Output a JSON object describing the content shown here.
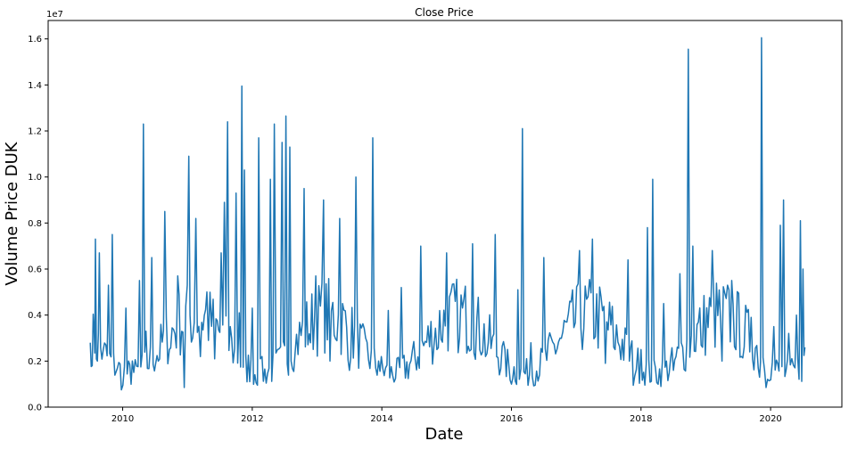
{
  "chart_data": {
    "type": "line",
    "title": "Close Price",
    "xlabel": "Date",
    "ylabel": "Volume Price DUK",
    "y_offset_label": "1e7",
    "xlim": [
      2008.85,
      2021.1
    ],
    "ylim": [
      0,
      16800000
    ],
    "x_ticks": [
      2010,
      2012,
      2014,
      2016,
      2018,
      2020
    ],
    "x_tick_labels": [
      "2010",
      "2012",
      "2014",
      "2016",
      "2018",
      "2020"
    ],
    "y_ticks": [
      0,
      2000000,
      4000000,
      6000000,
      8000000,
      10000000,
      12000000,
      14000000,
      16000000
    ],
    "y_tick_labels": [
      "0.0",
      "0.2",
      "0.4",
      "0.6",
      "0.8",
      "1.0",
      "1.2",
      "1.4",
      "1.6"
    ],
    "grid": false,
    "line_color": "#1f77b4",
    "series": [
      {
        "values": [
          {
            "x": 2009.5,
            "y": 2800000
          },
          {
            "x": 2009.53,
            "y": 1800000
          },
          {
            "x": 2009.56,
            "y": 3300000
          },
          {
            "x": 2009.58,
            "y": 7300000
          },
          {
            "x": 2009.61,
            "y": 2000000
          },
          {
            "x": 2009.64,
            "y": 6700000
          },
          {
            "x": 2009.7,
            "y": 2500000
          },
          {
            "x": 2009.78,
            "y": 5300000
          },
          {
            "x": 2009.84,
            "y": 7500000
          },
          {
            "x": 2009.92,
            "y": 1700000
          },
          {
            "x": 2009.98,
            "y": 750000
          },
          {
            "x": 2010.05,
            "y": 4300000
          },
          {
            "x": 2010.15,
            "y": 2000000
          },
          {
            "x": 2010.26,
            "y": 5500000
          },
          {
            "x": 2010.32,
            "y": 12300000
          },
          {
            "x": 2010.36,
            "y": 3300000
          },
          {
            "x": 2010.45,
            "y": 6500000
          },
          {
            "x": 2010.55,
            "y": 2000000
          },
          {
            "x": 2010.65,
            "y": 8500000
          },
          {
            "x": 2010.72,
            "y": 2500000
          },
          {
            "x": 2010.85,
            "y": 5700000
          },
          {
            "x": 2010.95,
            "y": 850000
          },
          {
            "x": 2011.02,
            "y": 10900000
          },
          {
            "x": 2011.08,
            "y": 3000000
          },
          {
            "x": 2011.13,
            "y": 8200000
          },
          {
            "x": 2011.2,
            "y": 2200000
          },
          {
            "x": 2011.3,
            "y": 5000000
          },
          {
            "x": 2011.42,
            "y": 2100000
          },
          {
            "x": 2011.52,
            "y": 6700000
          },
          {
            "x": 2011.57,
            "y": 8900000
          },
          {
            "x": 2011.62,
            "y": 12400000
          },
          {
            "x": 2011.66,
            "y": 3500000
          },
          {
            "x": 2011.75,
            "y": 9300000
          },
          {
            "x": 2011.8,
            "y": 4100000
          },
          {
            "x": 2011.84,
            "y": 13950000
          },
          {
            "x": 2011.88,
            "y": 10300000
          },
          {
            "x": 2011.92,
            "y": 1100000
          },
          {
            "x": 2012.0,
            "y": 4300000
          },
          {
            "x": 2012.1,
            "y": 11700000
          },
          {
            "x": 2012.15,
            "y": 2200000
          },
          {
            "x": 2012.28,
            "y": 9900000
          },
          {
            "x": 2012.34,
            "y": 12300000
          },
          {
            "x": 2012.39,
            "y": 2500000
          },
          {
            "x": 2012.46,
            "y": 11500000
          },
          {
            "x": 2012.52,
            "y": 12650000
          },
          {
            "x": 2012.58,
            "y": 11300000
          },
          {
            "x": 2012.66,
            "y": 2300000
          },
          {
            "x": 2012.8,
            "y": 9500000
          },
          {
            "x": 2012.9,
            "y": 2800000
          },
          {
            "x": 2012.98,
            "y": 5700000
          },
          {
            "x": 2013.1,
            "y": 9000000
          },
          {
            "x": 2013.2,
            "y": 2000000
          },
          {
            "x": 2013.35,
            "y": 8200000
          },
          {
            "x": 2013.5,
            "y": 1600000
          },
          {
            "x": 2013.6,
            "y": 10000000
          },
          {
            "x": 2013.75,
            "y": 3000000
          },
          {
            "x": 2013.86,
            "y": 11700000
          },
          {
            "x": 2013.95,
            "y": 2000000
          },
          {
            "x": 2014.1,
            "y": 4200000
          },
          {
            "x": 2014.3,
            "y": 5200000
          },
          {
            "x": 2014.6,
            "y": 7000000
          },
          {
            "x": 2014.85,
            "y": 2500000
          },
          {
            "x": 2015.0,
            "y": 6700000
          },
          {
            "x": 2015.2,
            "y": 3000000
          },
          {
            "x": 2015.4,
            "y": 7100000
          },
          {
            "x": 2015.6,
            "y": 2200000
          },
          {
            "x": 2015.75,
            "y": 7500000
          },
          {
            "x": 2015.9,
            "y": 2500000
          },
          {
            "x": 2016.0,
            "y": 1000000
          },
          {
            "x": 2016.1,
            "y": 5100000
          },
          {
            "x": 2016.17,
            "y": 12100000
          },
          {
            "x": 2016.3,
            "y": 2800000
          },
          {
            "x": 2016.5,
            "y": 6500000
          },
          {
            "x": 2016.75,
            "y": 3000000
          },
          {
            "x": 2017.05,
            "y": 6800000
          },
          {
            "x": 2017.25,
            "y": 7300000
          },
          {
            "x": 2017.45,
            "y": 1900000
          },
          {
            "x": 2017.6,
            "y": 2500000
          },
          {
            "x": 2017.8,
            "y": 6400000
          },
          {
            "x": 2017.88,
            "y": 950000
          },
          {
            "x": 2018.0,
            "y": 2500000
          },
          {
            "x": 2018.1,
            "y": 7800000
          },
          {
            "x": 2018.18,
            "y": 9900000
          },
          {
            "x": 2018.35,
            "y": 4500000
          },
          {
            "x": 2018.5,
            "y": 1600000
          },
          {
            "x": 2018.6,
            "y": 5800000
          },
          {
            "x": 2018.73,
            "y": 15550000
          },
          {
            "x": 2018.8,
            "y": 7000000
          },
          {
            "x": 2018.95,
            "y": 2600000
          },
          {
            "x": 2019.1,
            "y": 6800000
          },
          {
            "x": 2019.25,
            "y": 2000000
          },
          {
            "x": 2019.4,
            "y": 5500000
          },
          {
            "x": 2019.55,
            "y": 2200000
          },
          {
            "x": 2019.7,
            "y": 3900000
          },
          {
            "x": 2019.83,
            "y": 1300000
          },
          {
            "x": 2019.86,
            "y": 16050000
          },
          {
            "x": 2019.93,
            "y": 850000
          },
          {
            "x": 2020.05,
            "y": 3500000
          },
          {
            "x": 2020.15,
            "y": 7900000
          },
          {
            "x": 2020.2,
            "y": 9000000
          },
          {
            "x": 2020.28,
            "y": 3200000
          },
          {
            "x": 2020.4,
            "y": 4000000
          },
          {
            "x": 2020.46,
            "y": 8100000
          },
          {
            "x": 2020.5,
            "y": 6000000
          },
          {
            "x": 2020.53,
            "y": 2600000
          }
        ]
      }
    ]
  }
}
